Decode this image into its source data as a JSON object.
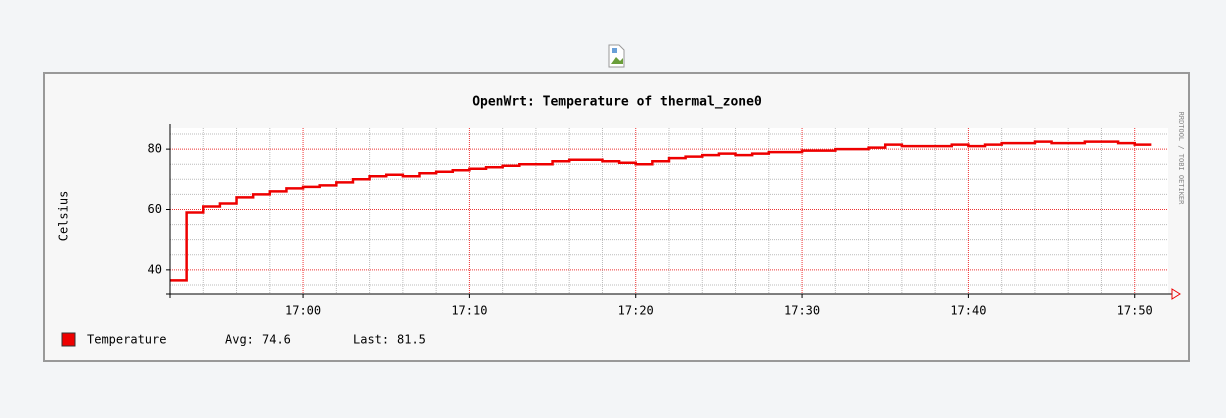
{
  "chart_data": {
    "type": "line",
    "title": "OpenWrt: Temperature of thermal_zone0",
    "y_label": "Celsius",
    "side_label": "RRDTOOL / TOBI OETIKER",
    "step": true,
    "grid": true,
    "x": [
      "16:52",
      "16:53",
      "16:54",
      "16:55",
      "16:56",
      "16:57",
      "16:58",
      "16:59",
      "17:00",
      "17:01",
      "17:02",
      "17:03",
      "17:04",
      "17:05",
      "17:06",
      "17:07",
      "17:08",
      "17:09",
      "17:10",
      "17:11",
      "17:12",
      "17:13",
      "17:14",
      "17:15",
      "17:16",
      "17:17",
      "17:18",
      "17:19",
      "17:20",
      "17:21",
      "17:22",
      "17:23",
      "17:24",
      "17:25",
      "17:26",
      "17:27",
      "17:28",
      "17:29",
      "17:30",
      "17:31",
      "17:32",
      "17:33",
      "17:34",
      "17:35",
      "17:36",
      "17:37",
      "17:38",
      "17:39",
      "17:40",
      "17:41",
      "17:42",
      "17:43",
      "17:44",
      "17:45",
      "17:46",
      "17:47",
      "17:48",
      "17:49",
      "17:50",
      "17:51"
    ],
    "series": [
      {
        "name": "Temperature",
        "color": "#ee0000",
        "values": [
          36.5,
          59,
          61,
          62,
          64,
          65,
          66,
          67,
          67.5,
          68,
          69,
          70,
          71,
          71.5,
          71,
          72,
          72.5,
          73,
          73.5,
          74,
          74.5,
          75,
          75,
          76,
          76.5,
          76.5,
          76,
          75.5,
          75,
          76,
          77,
          77.5,
          78,
          78.5,
          78,
          78.5,
          79,
          79,
          79.5,
          79.5,
          80,
          80,
          80.5,
          81.5,
          81,
          81,
          81,
          81.5,
          81,
          81.5,
          82,
          82,
          82.5,
          82,
          82,
          82.5,
          82.5,
          82,
          81.5,
          81.5
        ]
      }
    ],
    "legend_stats": [
      {
        "label": "Avg:",
        "value": 74.6
      },
      {
        "label": "Last:",
        "value": 81.5
      }
    ],
    "xlim": [
      "16:52",
      "17:52"
    ],
    "xticks": [
      "17:00",
      "17:10",
      "17:20",
      "17:30",
      "17:40",
      "17:50"
    ],
    "xminor": [
      "16:54",
      "16:56",
      "16:58",
      "17:02",
      "17:04",
      "17:06",
      "17:08",
      "17:12",
      "17:14",
      "17:16",
      "17:18",
      "17:22",
      "17:24",
      "17:26",
      "17:28",
      "17:32",
      "17:34",
      "17:36",
      "17:38",
      "17:42",
      "17:44",
      "17:46",
      "17:48"
    ],
    "ylim": [
      32,
      87
    ],
    "yticks": [
      40,
      60,
      80
    ],
    "yminor": [
      35,
      45,
      50,
      55,
      65,
      70,
      75,
      85
    ]
  }
}
